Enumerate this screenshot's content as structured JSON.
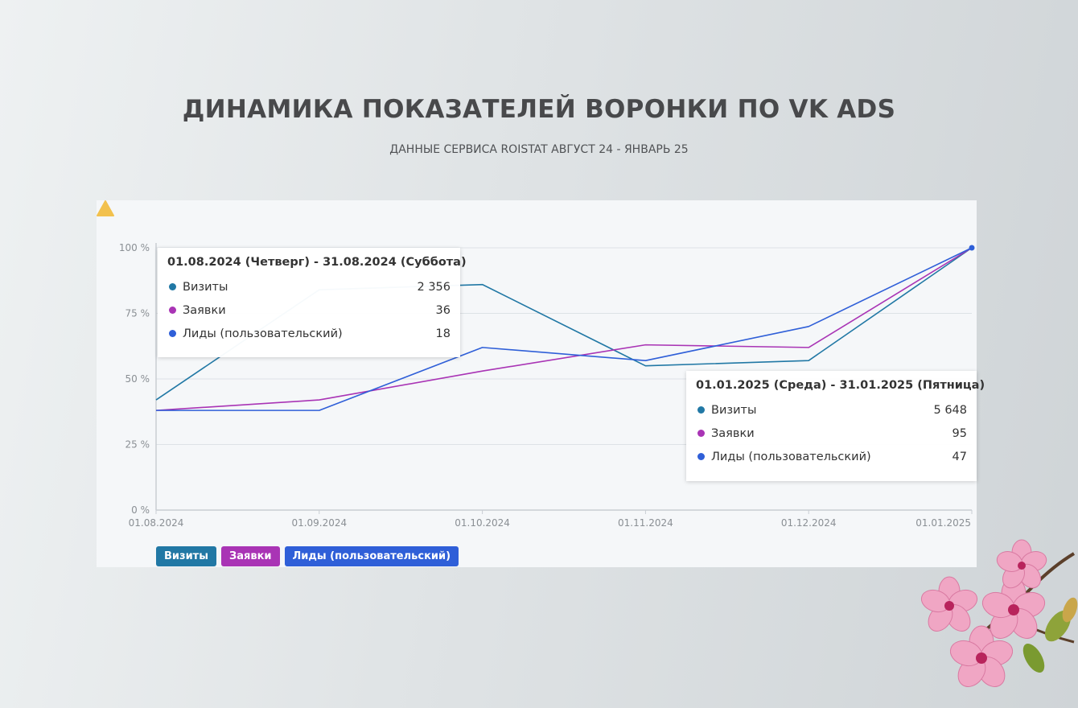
{
  "header": {
    "title": "ДИНАМИКА ПОКАЗАТЕЛЕЙ ВОРОНКИ ПО VK ADS",
    "subtitle": "ДАННЫЕ СЕРВИСА ROISTAT АВГУСТ 24 - ЯНВАРЬ 25"
  },
  "colors": {
    "visits": "#2178a5",
    "leads": "#a934b5",
    "custom_leads": "#2f5fd8",
    "warning": "#f2c14e"
  },
  "icons": {
    "warning": "warning-triangle-icon",
    "decoration": "cherry-blossom-icon"
  },
  "chart_data": {
    "type": "line",
    "categories": [
      "01.08.2024",
      "01.09.2024",
      "01.10.2024",
      "01.11.2024",
      "01.12.2024",
      "01.01.2025"
    ],
    "y_ticks": [
      "0 %",
      "25 %",
      "50 %",
      "75 %",
      "100 %"
    ],
    "ylim": [
      0,
      100
    ],
    "grid": true,
    "legend_position": "bottom-left",
    "series": [
      {
        "name": "Визиты",
        "key": "visits",
        "values": [
          42,
          84,
          86,
          55,
          57,
          100
        ]
      },
      {
        "name": "Заявки",
        "key": "leads",
        "values": [
          38,
          42,
          53,
          63,
          62,
          100
        ]
      },
      {
        "name": "Лиды (пользовательский)",
        "key": "custom_leads",
        "values": [
          38,
          38,
          62,
          57,
          70,
          100
        ]
      }
    ],
    "tooltips": [
      {
        "title": "01.08.2024 (Четверг) - 31.08.2024 (Суббота)",
        "rows": [
          {
            "label": "Визиты",
            "value": "2 356"
          },
          {
            "label": "Заявки",
            "value": "36"
          },
          {
            "label": "Лиды (пользовательский)",
            "value": "18"
          }
        ]
      },
      {
        "title": "01.01.2025 (Среда) - 31.01.2025 (Пятница)",
        "rows": [
          {
            "label": "Визиты",
            "value": "5 648"
          },
          {
            "label": "Заявки",
            "value": "95"
          },
          {
            "label": "Лиды (пользовательский)",
            "value": "47"
          }
        ]
      }
    ]
  }
}
